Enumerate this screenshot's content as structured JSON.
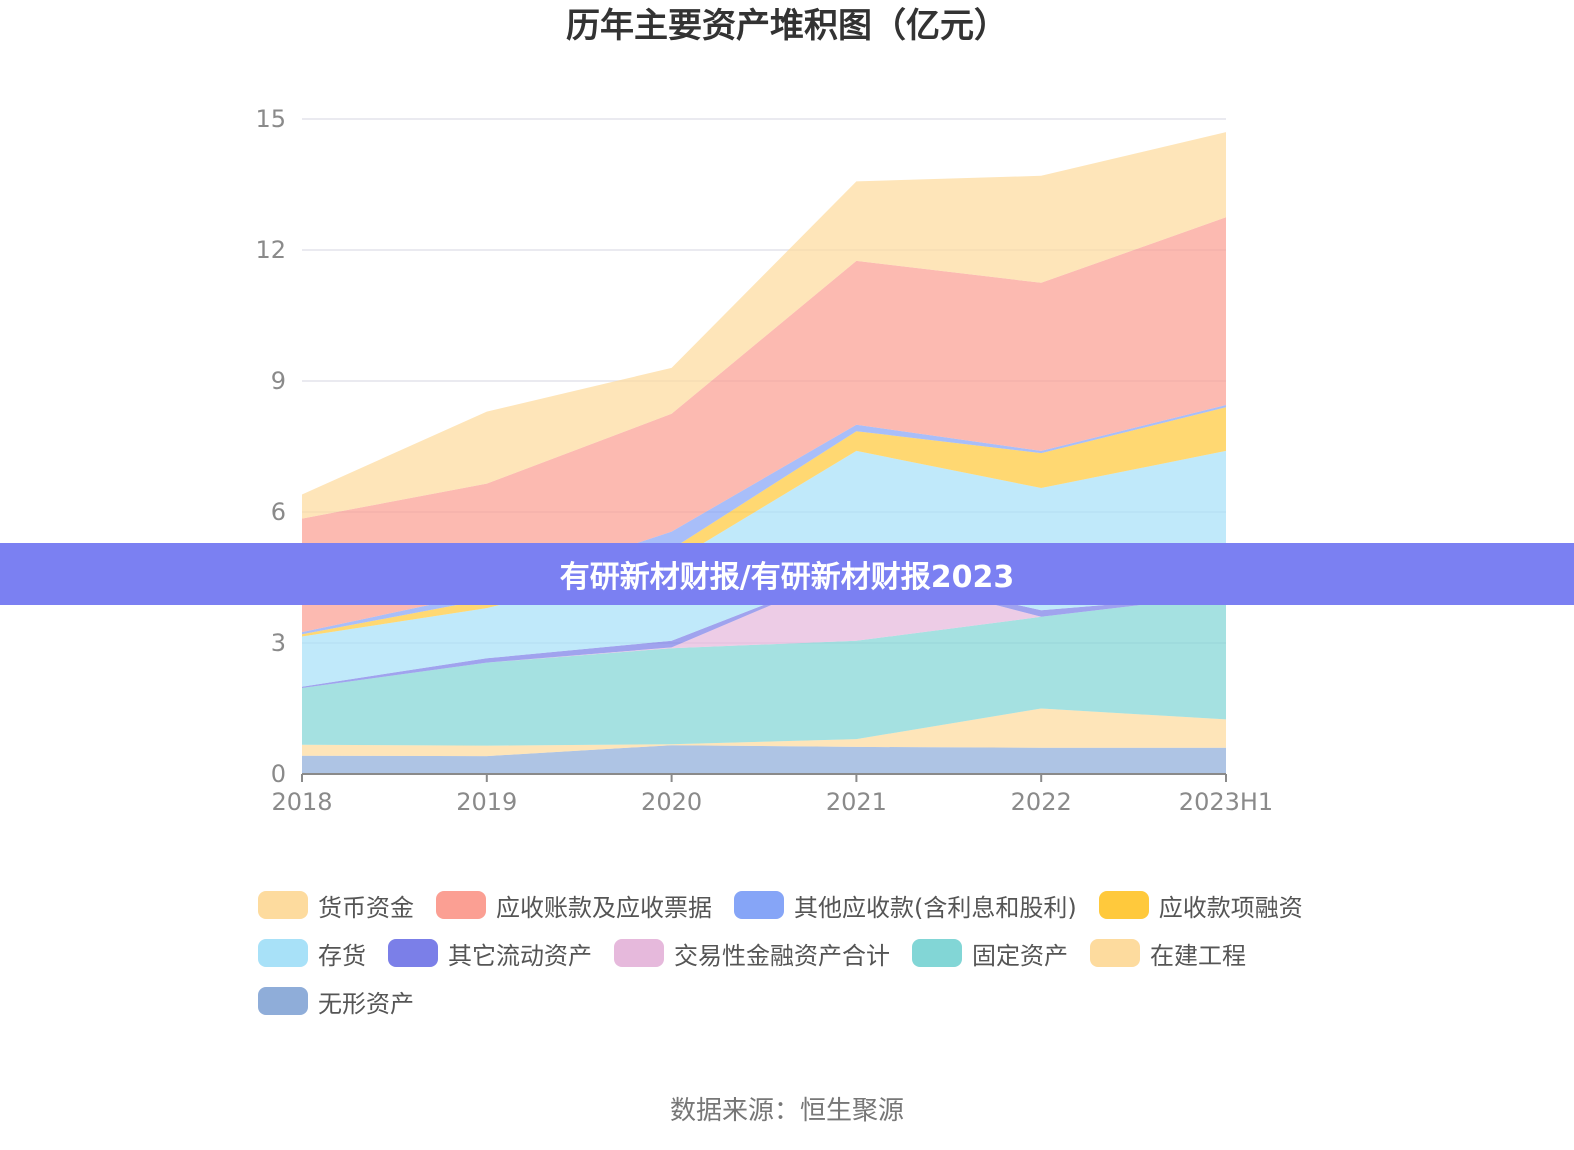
{
  "source": "数据来源：恒生聚源",
  "banner": {
    "text": "有研新材财报/有研新材财报2023"
  },
  "chart_data": {
    "type": "area",
    "stacked": true,
    "title": "历年主要资产堆积图（亿元）",
    "categories": [
      "2018",
      "2019",
      "2020",
      "2021",
      "2022",
      "2023H1"
    ],
    "ylim": [
      0,
      15
    ],
    "yticks": [
      0,
      3,
      6,
      9,
      12,
      15
    ],
    "grid": true,
    "legend_position": "bottom",
    "series": [
      {
        "name": "无形资产",
        "color": "#8fadd9",
        "values": [
          0.42,
          0.41,
          0.66,
          0.62,
          0.6,
          0.6
        ]
      },
      {
        "name": "在建工程",
        "color": "#fddb9e",
        "values": [
          0.25,
          0.24,
          0.02,
          0.18,
          0.9,
          0.65
        ]
      },
      {
        "name": "固定资产",
        "color": "#82d6d6",
        "values": [
          1.3,
          1.9,
          2.2,
          2.25,
          2.1,
          2.85
        ]
      },
      {
        "name": "交易性金融资产合计",
        "color": "#e6b9dc",
        "values": [
          0.0,
          0.0,
          0.02,
          1.65,
          0.0,
          0.0
        ]
      },
      {
        "name": "其它流动资产",
        "color": "#7b7fe8",
        "values": [
          0.03,
          0.1,
          0.15,
          0.0,
          0.15,
          0.0
        ]
      },
      {
        "name": "存货",
        "color": "#a8e1f8",
        "values": [
          1.15,
          1.15,
          1.8,
          2.7,
          2.8,
          3.3
        ]
      },
      {
        "name": "应收款项融资",
        "color": "#ffc93c",
        "values": [
          0.05,
          0.2,
          0.3,
          0.45,
          0.8,
          1.0
        ]
      },
      {
        "name": "其他应收款(含利息和股利)",
        "color": "#86a5f7",
        "values": [
          0.05,
          0.15,
          0.4,
          0.15,
          0.05,
          0.05
        ]
      },
      {
        "name": "应收账款及应收票据",
        "color": "#fb9f93",
        "values": [
          2.6,
          2.5,
          2.7,
          3.75,
          3.85,
          4.3
        ]
      },
      {
        "name": "货币资金",
        "color": "#fddb9e",
        "values": [
          0.55,
          1.65,
          1.05,
          1.82,
          2.45,
          1.95
        ]
      }
    ],
    "legend_order": [
      "货币资金",
      "应收账款及应收票据",
      "其他应收款(含利息和股利)",
      "应收款项融资",
      "存货",
      "其它流动资产",
      "交易性金融资产合计",
      "固定资产",
      "在建工程",
      "无形资产"
    ]
  }
}
